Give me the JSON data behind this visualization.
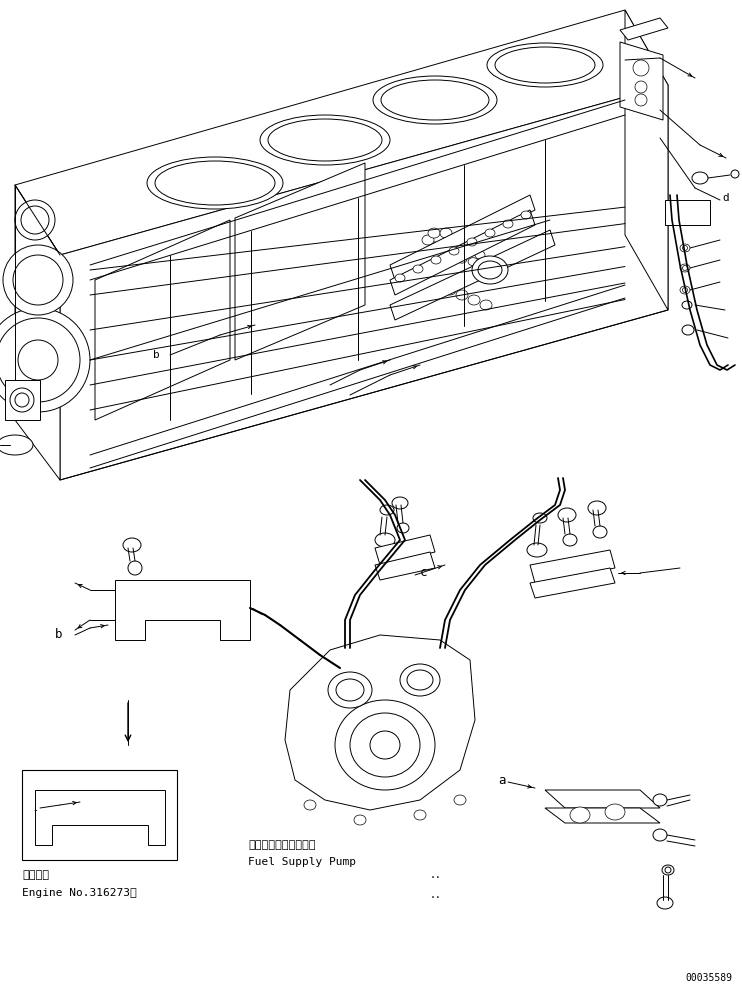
{
  "fig_width": 7.42,
  "fig_height": 9.89,
  "dpi": 100,
  "bg_color": "#ffffff",
  "bottom_left_text_line1": "適用号機",
  "bottom_left_text_line2": "Engine No.316273～",
  "fuel_pump_label_jp": "フェルサプライボンプ",
  "fuel_pump_label_en": "Fuel Supply Pump",
  "doc_number": "00035589",
  "label_a": "a",
  "label_b": "b",
  "label_c": "c",
  "label_d": "d",
  "line_color": "#000000",
  "bg_color2": "#ffffff"
}
